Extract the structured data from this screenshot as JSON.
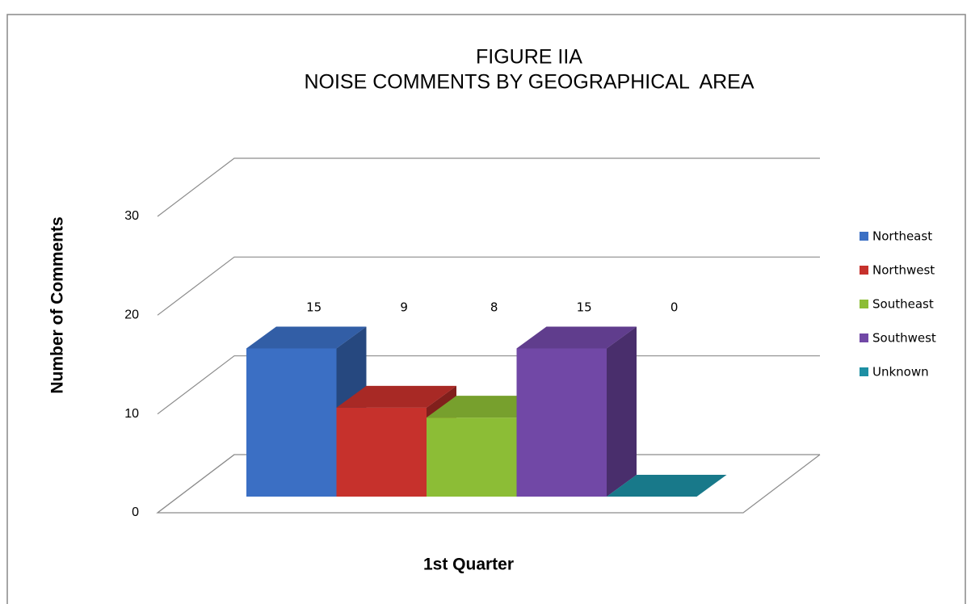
{
  "chart_data": {
    "type": "bar",
    "title": "FIGURE IIA",
    "subtitle": "NOISE COMMENTS BY GEOGRAPHICAL  AREA",
    "ylabel": "Number of Comments",
    "xlabel": "1st Quarter",
    "categories": [
      "1st Quarter"
    ],
    "series": [
      {
        "name": "Northeast",
        "color": "#3b6fc4",
        "values": [
          15
        ]
      },
      {
        "name": "Northwest",
        "color": "#c6312c",
        "values": [
          9
        ]
      },
      {
        "name": "Southeast",
        "color": "#8cbd36",
        "values": [
          8
        ]
      },
      {
        "name": "Southwest",
        "color": "#7148a6",
        "values": [
          15
        ]
      },
      {
        "name": "Unknown",
        "color": "#1d8fa3",
        "values": [
          0
        ]
      }
    ],
    "ylim": [
      0,
      30
    ],
    "yticks": [
      0,
      10,
      20,
      30
    ],
    "grid": true,
    "legend": "right",
    "data_labels": true
  }
}
